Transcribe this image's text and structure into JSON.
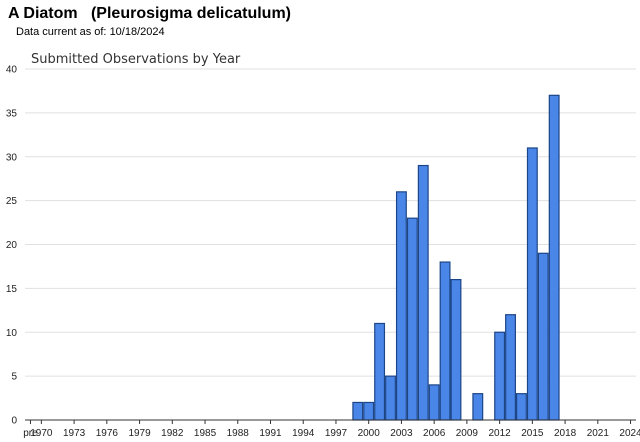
{
  "header": {
    "title": "A Diatom   (Pleurosigma delicatulum)",
    "data_current_label": "Data current as of:",
    "data_current_date": "10/18/2024"
  },
  "colors": {
    "bar_fill": "#4a86e8",
    "bar_stroke": "#1c4587",
    "grid": "#e0e0e0",
    "axis": "#333333"
  },
  "chart_data": {
    "type": "bar",
    "title": "Submitted Observations by Year",
    "xlabel": "",
    "ylabel": "",
    "ylim": [
      0,
      40
    ],
    "yticks": [
      0,
      5,
      10,
      15,
      20,
      25,
      30,
      35,
      40
    ],
    "grid": true,
    "xtick_labels": [
      "pre",
      "1970",
      "1973",
      "1976",
      "1979",
      "1982",
      "1985",
      "1988",
      "1991",
      "1994",
      "1997",
      "2000",
      "2003",
      "2006",
      "2009",
      "2012",
      "2015",
      "2018",
      "2021",
      "2024"
    ],
    "categories": [
      "pre",
      "1970",
      "1971",
      "1972",
      "1973",
      "1974",
      "1975",
      "1976",
      "1977",
      "1978",
      "1979",
      "1980",
      "1981",
      "1982",
      "1983",
      "1984",
      "1985",
      "1986",
      "1987",
      "1988",
      "1989",
      "1990",
      "1991",
      "1992",
      "1993",
      "1994",
      "1995",
      "1996",
      "1997",
      "1998",
      "1999",
      "2000",
      "2001",
      "2002",
      "2003",
      "2004",
      "2005",
      "2006",
      "2007",
      "2008",
      "2009",
      "2010",
      "2011",
      "2012",
      "2013",
      "2014",
      "2015",
      "2016",
      "2017",
      "2018",
      "2019",
      "2020",
      "2021",
      "2022",
      "2023",
      "2024"
    ],
    "values": [
      0,
      0,
      0,
      0,
      0,
      0,
      0,
      0,
      0,
      0,
      0,
      0,
      0,
      0,
      0,
      0,
      0,
      0,
      0,
      0,
      0,
      0,
      0,
      0,
      0,
      0,
      0,
      0,
      0,
      0,
      2,
      2,
      11,
      5,
      26,
      23,
      29,
      4,
      18,
      16,
      0,
      3,
      0,
      10,
      12,
      3,
      31,
      19,
      37,
      0,
      0,
      0,
      0,
      0,
      0,
      0
    ]
  }
}
